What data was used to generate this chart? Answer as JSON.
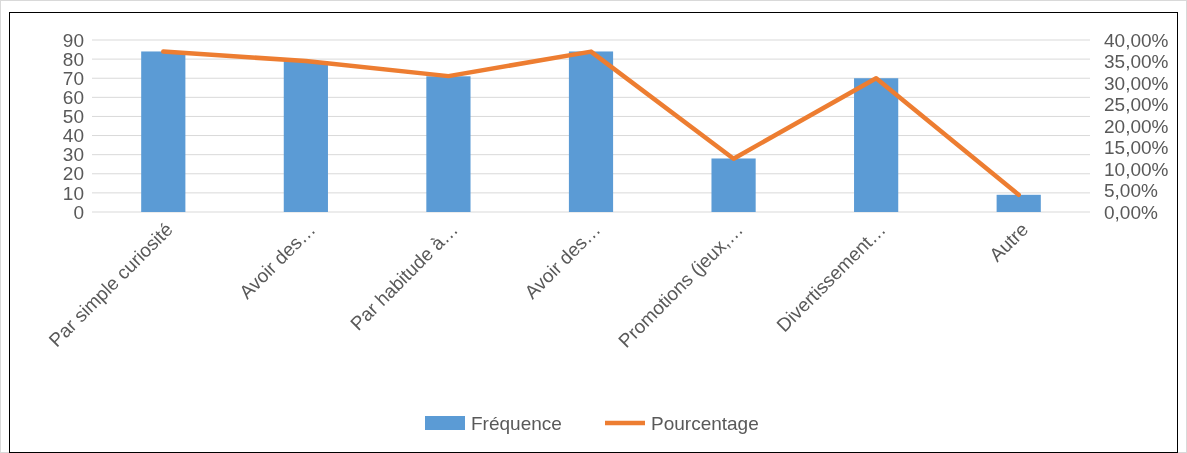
{
  "chart_data": {
    "type": "bar",
    "categories": [
      "Par simple curiosité",
      "Avoir des…",
      "Par habitude à…",
      "Avoir des…",
      "Promotions (jeux,…",
      "Divertissement…",
      "Autre"
    ],
    "series": [
      {
        "name": "Fréquence",
        "color": "#5b9bd5",
        "values": [
          84,
          79,
          71,
          84,
          28,
          70,
          9
        ]
      },
      {
        "name": "Pourcentage",
        "type": "line",
        "axis": "y2",
        "color": "#ed7d31",
        "values": [
          37.3,
          35.1,
          31.6,
          37.3,
          12.4,
          31.1,
          4.0
        ]
      }
    ],
    "ylim": [
      0,
      90
    ],
    "yticks": [
      0,
      10,
      20,
      30,
      40,
      50,
      60,
      70,
      80,
      90
    ],
    "y2lim": [
      0,
      40
    ],
    "y2ticks": [
      {
        "value": 0,
        "label": "0,00%"
      },
      {
        "value": 5,
        "label": "5,00%"
      },
      {
        "value": 10,
        "label": "10,00%"
      },
      {
        "value": 15,
        "label": "15,00%"
      },
      {
        "value": 20,
        "label": "20,00%"
      },
      {
        "value": 25,
        "label": "25,00%"
      },
      {
        "value": 30,
        "label": "30,00%"
      },
      {
        "value": 35,
        "label": "35,00%"
      },
      {
        "value": 40,
        "label": "40,00%"
      }
    ],
    "grid": "y",
    "legend": "bottom"
  }
}
